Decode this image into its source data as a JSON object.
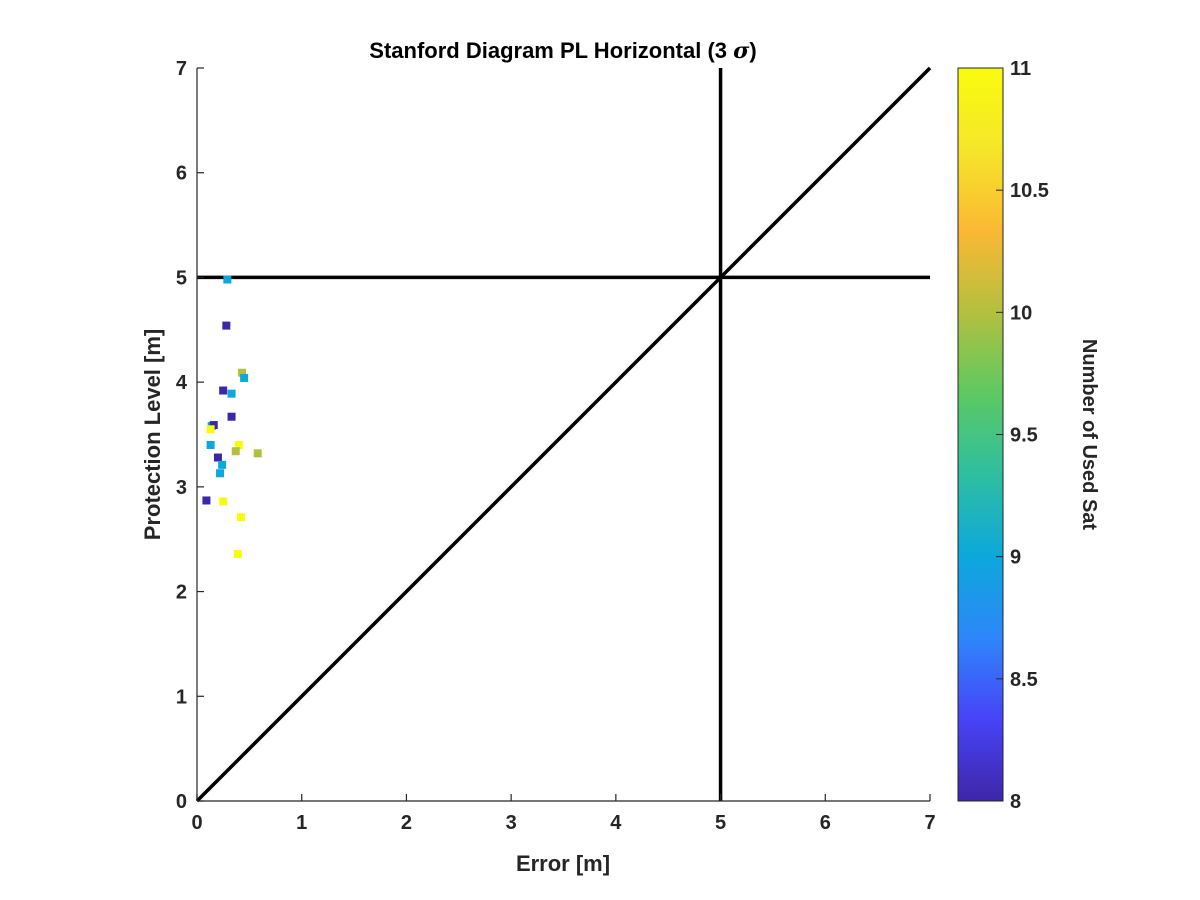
{
  "chart_data": {
    "type": "scatter",
    "title_main": "Stanford Diagram PL Horizontal (3 ",
    "title_symbol": "σ",
    "title_end": ")",
    "xlabel": "Error [m]",
    "ylabel": "Protection Level [m]",
    "xlim": [
      0,
      7
    ],
    "ylim": [
      0,
      7
    ],
    "xticks": [
      "0",
      "1",
      "2",
      "3",
      "4",
      "5",
      "6",
      "7"
    ],
    "yticks": [
      "0",
      "1",
      "2",
      "3",
      "4",
      "5",
      "6",
      "7"
    ],
    "reference_lines": [
      {
        "kind": "diagonal",
        "from": [
          0,
          0
        ],
        "to": [
          7,
          7
        ]
      },
      {
        "kind": "vertical",
        "x": 5
      },
      {
        "kind": "horizontal",
        "y": 5
      }
    ],
    "points": [
      {
        "x": 0.29,
        "y": 4.98,
        "sats": 9
      },
      {
        "x": 0.28,
        "y": 4.54,
        "sats": 8
      },
      {
        "x": 0.43,
        "y": 4.09,
        "sats": 10
      },
      {
        "x": 0.45,
        "y": 4.04,
        "sats": 9
      },
      {
        "x": 0.25,
        "y": 3.92,
        "sats": 8
      },
      {
        "x": 0.33,
        "y": 3.89,
        "sats": 9
      },
      {
        "x": 0.33,
        "y": 3.67,
        "sats": 8
      },
      {
        "x": 0.14,
        "y": 3.58,
        "sats": 9
      },
      {
        "x": 0.16,
        "y": 3.59,
        "sats": 8
      },
      {
        "x": 0.13,
        "y": 3.55,
        "sats": 11
      },
      {
        "x": 0.13,
        "y": 3.4,
        "sats": 9
      },
      {
        "x": 0.4,
        "y": 3.4,
        "sats": 11
      },
      {
        "x": 0.37,
        "y": 3.34,
        "sats": 10
      },
      {
        "x": 0.58,
        "y": 3.32,
        "sats": 10
      },
      {
        "x": 0.2,
        "y": 3.28,
        "sats": 8
      },
      {
        "x": 0.24,
        "y": 3.21,
        "sats": 9
      },
      {
        "x": 0.22,
        "y": 3.13,
        "sats": 9
      },
      {
        "x": 0.09,
        "y": 2.87,
        "sats": 8
      },
      {
        "x": 0.25,
        "y": 2.86,
        "sats": 11
      },
      {
        "x": 0.42,
        "y": 2.71,
        "sats": 11
      },
      {
        "x": 0.39,
        "y": 2.36,
        "sats": 11
      }
    ],
    "colorbar": {
      "label": "Number of Used Sat",
      "range": [
        8,
        11
      ],
      "ticks": [
        "8",
        "8.5",
        "9",
        "9.5",
        "10",
        "10.5",
        "11"
      ],
      "colors": [
        "#3e26a8",
        "#4743f8",
        "#2e86fa",
        "#0ca8dc",
        "#2ebea1",
        "#5dc962",
        "#b3c03f",
        "#fbb833",
        "#f5e62a",
        "#f9fb0e"
      ]
    },
    "grid": false,
    "legend": "none"
  }
}
